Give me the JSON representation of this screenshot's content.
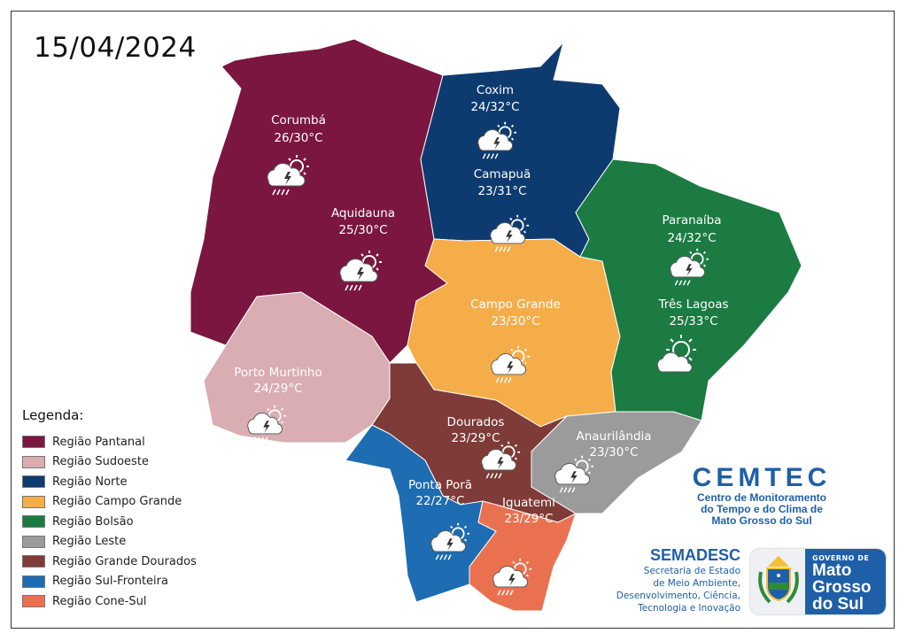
{
  "date": "15/04/2024",
  "colors": {
    "pantanal": "#7b1640",
    "sudoeste": "#d9adb2",
    "norte": "#0e3b6f",
    "campo_grande": "#f5ad4a",
    "bolsao": "#1b7b43",
    "leste": "#9b9b9b",
    "grande_dourados": "#7f3b37",
    "sul_fronteira": "#1e6cb1",
    "cone_sul": "#ea7150"
  },
  "cities": [
    {
      "name": "Corumbá",
      "temp": "26/30°C",
      "icon": "sun-cloud-storm-rain-icon"
    },
    {
      "name": "Aquidauna",
      "temp": "25/30°C",
      "icon": "sun-cloud-storm-rain-icon"
    },
    {
      "name": "Coxim",
      "temp": "24/32°C",
      "icon": "sun-cloud-storm-rain-icon"
    },
    {
      "name": "Camapuã",
      "temp": "23/31°C",
      "icon": "sun-cloud-storm-rain-icon"
    },
    {
      "name": "Paranaíba",
      "temp": "24/32°C",
      "icon": "sun-cloud-storm-rain-icon"
    },
    {
      "name": "Três Lagoas",
      "temp": "25/33°C",
      "icon": "sun-cloud-icon"
    },
    {
      "name": "Campo Grande",
      "temp": "23/30°C",
      "icon": "sun-cloud-storm-rain-icon"
    },
    {
      "name": "Porto Murtinho",
      "temp": "24/29°C",
      "icon": "sun-cloud-storm-rain-icon"
    },
    {
      "name": "Dourados",
      "temp": "23/29°C",
      "icon": "sun-cloud-storm-rain-icon"
    },
    {
      "name": "Anaurilândia",
      "temp": "23/30°C",
      "icon": "sun-cloud-storm-rain-icon"
    },
    {
      "name": "Ponta Porã",
      "temp": "22/27°C",
      "icon": "sun-cloud-storm-rain-icon"
    },
    {
      "name": "Iguatemi",
      "temp": "23/29°C",
      "icon": "sun-cloud-storm-rain-icon"
    }
  ],
  "legend": {
    "title": "Legenda:",
    "items": [
      {
        "label": "Região Pantanal",
        "color": "#7b1640"
      },
      {
        "label": "Região Sudoeste",
        "color": "#d9adb2"
      },
      {
        "label": "Região Norte",
        "color": "#0e3b6f"
      },
      {
        "label": "Região Campo Grande",
        "color": "#f5ad4a"
      },
      {
        "label": "Região Bolsão",
        "color": "#1b7b43"
      },
      {
        "label": "Região Leste",
        "color": "#9b9b9b"
      },
      {
        "label": "Região Grande Dourados",
        "color": "#7f3b37"
      },
      {
        "label": "Região Sul-Fronteira",
        "color": "#1e6cb1"
      },
      {
        "label": "Região Cone-Sul",
        "color": "#ea7150"
      }
    ]
  },
  "cemtec": {
    "name": "CEMTEC",
    "line1": "Centro de Monitoramento",
    "line2": "do Tempo e do Clima de",
    "line3": "Mato Grosso do Sul"
  },
  "semadesc": {
    "name": "SEMADESC",
    "line1": "Secretaria de Estado",
    "line2": "de Meio Ambiente,",
    "line3": "Desenvolvimento, Ciência,",
    "line4": "Tecnologia e Inovação"
  },
  "governo": {
    "line1": "GOVERNO DE",
    "line2": "Mato",
    "line3": "Grosso",
    "line4": "do Sul"
  }
}
